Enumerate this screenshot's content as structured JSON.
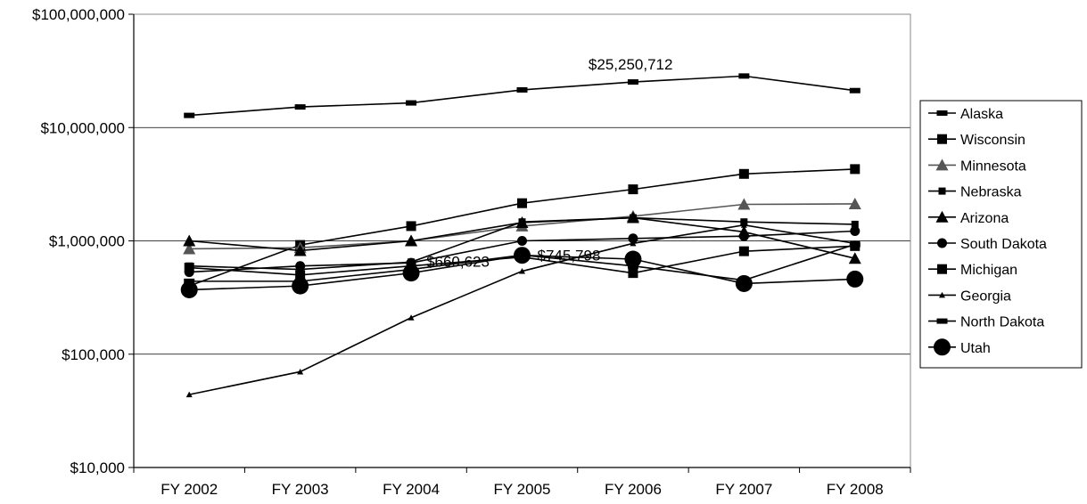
{
  "chart_data": {
    "type": "line",
    "yscale": "log",
    "ylim": [
      10000,
      100000000
    ],
    "grid": "horizontal",
    "legend_position": "right",
    "categories": [
      "FY 2002",
      "FY 2003",
      "FY 2004",
      "FY 2005",
      "FY 2006",
      "FY 2007",
      "FY 2008"
    ],
    "y_ticks": [
      {
        "value": 10000,
        "label": "$10,000"
      },
      {
        "value": 100000,
        "label": "$100,000"
      },
      {
        "value": 1000000,
        "label": "$1,000,000"
      },
      {
        "value": 10000000,
        "label": "$10,000,000"
      },
      {
        "value": 100000000,
        "label": "$100,000,000"
      }
    ],
    "series": [
      {
        "name": "Alaska",
        "color": "#000000",
        "marker": "dash",
        "values": [
          12800000,
          15200000,
          16500000,
          21500000,
          25250712,
          28500000,
          21200000
        ]
      },
      {
        "name": "Wisconsin",
        "color": "#000000",
        "marker": "square",
        "values": [
          400000,
          920000,
          1350000,
          2150000,
          2850000,
          3900000,
          4300000
        ]
      },
      {
        "name": "Minnesota",
        "color": "#555555",
        "marker": "triangle",
        "values": [
          850000,
          870000,
          1000000,
          1350000,
          1650000,
          2100000,
          2120000
        ]
      },
      {
        "name": "Nebraska",
        "color": "#000000",
        "marker": "small-square",
        "values": [
          600000,
          560000,
          650000,
          1470000,
          1600000,
          1470000,
          1400000
        ]
      },
      {
        "name": "Arizona",
        "color": "#000000",
        "marker": "triangle",
        "values": [
          1000000,
          820000,
          1000000,
          1450000,
          1600000,
          1200000,
          700000
        ]
      },
      {
        "name": "South Dakota",
        "color": "#000000",
        "marker": "circle",
        "values": [
          530000,
          600000,
          640000,
          1000000,
          1050000,
          1100000,
          1220000
        ]
      },
      {
        "name": "Michigan",
        "color": "#000000",
        "marker": "square",
        "values": [
          580000,
          500000,
          600000,
          720000,
          520000,
          810000,
          900000
        ]
      },
      {
        "name": "Georgia",
        "color": "#000000",
        "marker": "small-triangle",
        "values": [
          44000,
          70000,
          210000,
          540000,
          950000,
          1380000,
          950000
        ]
      },
      {
        "name": "North Dakota",
        "color": "#000000",
        "marker": "dash",
        "values": [
          440000,
          440000,
          560000,
          750000,
          600000,
          450000,
          930000
        ]
      },
      {
        "name": "Utah",
        "color": "#000000",
        "marker": "big-circle",
        "values": [
          370000,
          400000,
          520000,
          745798,
          690000,
          420000,
          460000
        ]
      }
    ],
    "annotations": [
      {
        "text": "$25,250,712",
        "category": "FY 2006",
        "value": 25250712
      },
      {
        "text": "$745,798",
        "category": "FY 2005",
        "value": 745798
      },
      {
        "text": "$660,623",
        "category": "FY 2004",
        "value": 660623
      }
    ]
  }
}
